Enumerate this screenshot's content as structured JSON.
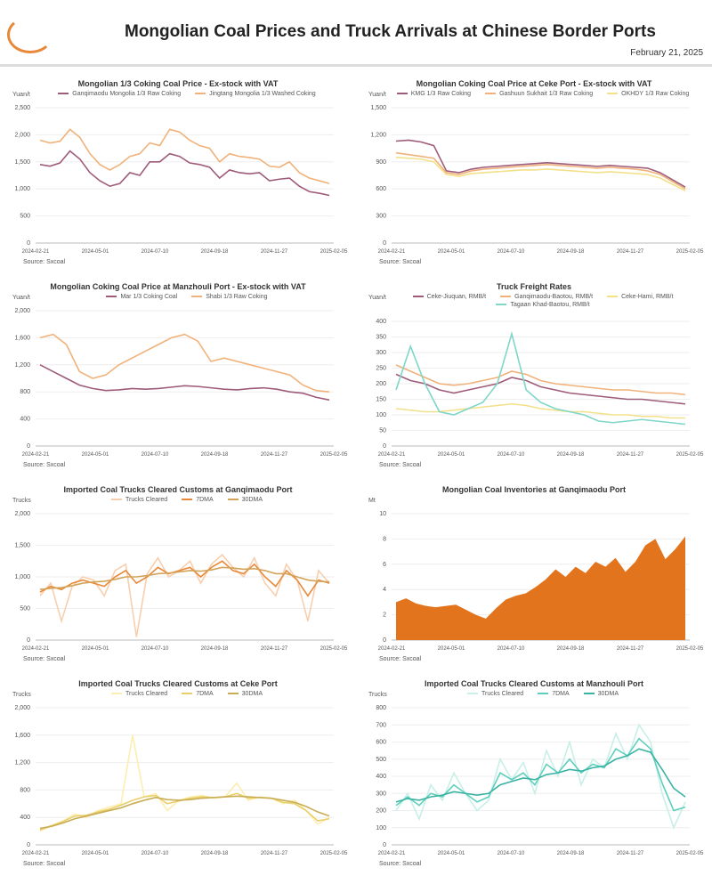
{
  "header": {
    "logo_text": "",
    "title": "Mongolian Coal Prices and Truck Arrivals at Chinese Border Ports",
    "date": "February 21, 2025"
  },
  "source": "Source: Sxcoal",
  "xticks": [
    "2024-02-21",
    "2024-05-01",
    "2024-07-10",
    "2024-09-18",
    "2024-11-27",
    "2025-02-05"
  ],
  "chart_data": [
    {
      "type": "line",
      "title": "Mongolian 1/3 Coking Coal Price - Ex-stock with VAT",
      "unit": "Yuan/t",
      "ylim": [
        0,
        2500
      ],
      "yticks": [
        0,
        500,
        1000,
        1500,
        2000,
        2500
      ],
      "series": [
        {
          "name": "Ganqimaodu Mongolia 1/3 Raw Coking",
          "color": "#9e5b7a",
          "values": [
            1450,
            1420,
            1480,
            1700,
            1550,
            1300,
            1150,
            1050,
            1100,
            1300,
            1250,
            1500,
            1500,
            1650,
            1600,
            1480,
            1450,
            1400,
            1200,
            1350,
            1300,
            1280,
            1300,
            1150,
            1180,
            1200,
            1050,
            950,
            920,
            880
          ]
        },
        {
          "name": "Jingtang Mongolia 1/3 Washed Coking",
          "color": "#f0b27a",
          "values": [
            1900,
            1850,
            1880,
            2100,
            1950,
            1650,
            1450,
            1350,
            1450,
            1600,
            1650,
            1850,
            1800,
            2100,
            2050,
            1900,
            1800,
            1750,
            1500,
            1650,
            1600,
            1580,
            1550,
            1420,
            1400,
            1500,
            1300,
            1200,
            1150,
            1100
          ]
        }
      ]
    },
    {
      "type": "line",
      "title": "Mongolian Coking Coal Price at Ceke Port - Ex-stock with VAT",
      "unit": "Yuan/t",
      "ylim": [
        0,
        1500
      ],
      "yticks": [
        0,
        300,
        600,
        900,
        1200,
        1500
      ],
      "series": [
        {
          "name": "KMG 1/3 Raw Coking",
          "color": "#9e5b7a",
          "values": [
            1130,
            1140,
            1120,
            1080,
            800,
            780,
            820,
            840,
            850,
            860,
            870,
            880,
            890,
            880,
            870,
            860,
            850,
            860,
            850,
            840,
            830,
            780,
            700,
            620
          ]
        },
        {
          "name": "Gashuun Sukhait 1/3 Raw Coking",
          "color": "#f0b27a",
          "values": [
            1000,
            980,
            960,
            940,
            780,
            760,
            800,
            820,
            830,
            840,
            850,
            860,
            870,
            860,
            850,
            840,
            830,
            840,
            830,
            820,
            800,
            760,
            680,
            600
          ]
        },
        {
          "name": "OKHDY 1/3 Raw Coking",
          "color": "#f3e08a",
          "values": [
            950,
            940,
            930,
            900,
            760,
            740,
            770,
            780,
            790,
            800,
            810,
            810,
            820,
            810,
            800,
            790,
            780,
            790,
            780,
            770,
            760,
            720,
            650,
            580
          ]
        }
      ]
    },
    {
      "type": "line",
      "title": "Mongolian Coking Coal Price at Manzhouli Port - Ex-stock with VAT",
      "unit": "Yuan/t",
      "ylim": [
        0,
        2000
      ],
      "yticks": [
        0,
        400,
        800,
        1200,
        1600,
        2000
      ],
      "series": [
        {
          "name": "Mar 1/3 Coking Coal",
          "color": "#9e5b7a",
          "values": [
            1200,
            1100,
            1000,
            900,
            850,
            820,
            830,
            850,
            840,
            850,
            870,
            890,
            880,
            860,
            840,
            830,
            850,
            860,
            840,
            800,
            780,
            720,
            680
          ]
        },
        {
          "name": "Shabi 1/3 Raw Coking",
          "color": "#f0b27a",
          "values": [
            1600,
            1650,
            1500,
            1100,
            1000,
            1050,
            1200,
            1300,
            1400,
            1500,
            1600,
            1650,
            1550,
            1250,
            1300,
            1250,
            1200,
            1150,
            1100,
            1050,
            900,
            820,
            800
          ]
        }
      ]
    },
    {
      "type": "line",
      "title": "Truck Freight Rates",
      "unit": "Yuan/t",
      "ylim": [
        0,
        400
      ],
      "yticks": [
        0,
        50,
        100,
        150,
        200,
        250,
        300,
        350,
        400
      ],
      "series": [
        {
          "name": "Ceke-Jiuquan, RMB/t",
          "color": "#9e5b7a",
          "values": [
            230,
            210,
            200,
            180,
            170,
            180,
            190,
            200,
            220,
            210,
            190,
            180,
            170,
            165,
            160,
            155,
            150,
            150,
            145,
            140,
            135
          ]
        },
        {
          "name": "Ganqimaodu-Baotou, RMB/t",
          "color": "#f0b27a",
          "values": [
            260,
            240,
            220,
            200,
            195,
            200,
            210,
            220,
            240,
            230,
            210,
            200,
            195,
            190,
            185,
            180,
            180,
            175,
            170,
            170,
            165
          ]
        },
        {
          "name": "Ceke-Hami, RMB/t",
          "color": "#f3e08a",
          "values": [
            120,
            115,
            110,
            110,
            115,
            120,
            125,
            130,
            135,
            130,
            120,
            115,
            110,
            110,
            105,
            100,
            100,
            95,
            95,
            90,
            90
          ]
        },
        {
          "name": "Tagaan Khad-Baotou, RMB/t",
          "color": "#7fd6c9",
          "values": [
            180,
            320,
            200,
            110,
            100,
            120,
            140,
            200,
            360,
            180,
            140,
            120,
            110,
            100,
            80,
            75,
            80,
            85,
            80,
            75,
            70
          ]
        }
      ]
    },
    {
      "type": "line",
      "title": "Imported Coal Trucks Cleared Customs at Ganqimaodu Port",
      "unit": "Trucks",
      "ylim": [
        0,
        2000
      ],
      "yticks": [
        0,
        500,
        1000,
        1500,
        2000
      ],
      "series": [
        {
          "name": "Trucks Cleared",
          "color": "#f8cfae",
          "values": [
            700,
            900,
            300,
            850,
            1000,
            950,
            700,
            1100,
            1200,
            50,
            1050,
            1300,
            1000,
            1100,
            1250,
            900,
            1200,
            1350,
            1150,
            1000,
            1300,
            900,
            700,
            1200,
            950,
            300,
            1100,
            900
          ]
        },
        {
          "name": "7DMA",
          "color": "#e8893a",
          "values": [
            760,
            850,
            800,
            900,
            950,
            900,
            850,
            1000,
            1100,
            900,
            1000,
            1150,
            1050,
            1100,
            1150,
            1000,
            1150,
            1250,
            1100,
            1050,
            1200,
            1000,
            850,
            1100,
            950,
            700,
            950,
            900
          ]
        },
        {
          "name": "30DMA",
          "color": "#d4a35a",
          "values": [
            800,
            820,
            830,
            860,
            900,
            920,
            930,
            960,
            1000,
            1000,
            1020,
            1050,
            1060,
            1080,
            1100,
            1090,
            1110,
            1150,
            1140,
            1120,
            1130,
            1100,
            1050,
            1050,
            1000,
            950,
            930,
            920
          ]
        }
      ]
    },
    {
      "type": "area",
      "title": "Mongolian Coal Inventories at Ganqimaodu Port",
      "unit": "Mt",
      "ylim": [
        0,
        10
      ],
      "yticks": [
        0,
        2,
        4,
        6,
        8,
        10
      ],
      "series": [
        {
          "name": "",
          "color": "#e2741e",
          "values": [
            3.0,
            3.3,
            2.9,
            2.7,
            2.6,
            2.7,
            2.8,
            2.4,
            2.0,
            1.7,
            2.5,
            3.2,
            3.5,
            3.7,
            4.2,
            4.8,
            5.6,
            5.0,
            5.8,
            5.3,
            6.2,
            5.8,
            6.5,
            5.4,
            6.2,
            7.5,
            8.0,
            6.4,
            7.2,
            8.2
          ]
        }
      ]
    },
    {
      "type": "line",
      "title": "Imported Coal Trucks Cleared Customs at Ceke Port",
      "unit": "Trucks",
      "ylim": [
        0,
        2000
      ],
      "yticks": [
        0,
        400,
        800,
        1200,
        1600,
        2000
      ],
      "series": [
        {
          "name": "Trucks Cleared",
          "color": "#fbeeb0",
          "values": [
            200,
            280,
            350,
            450,
            400,
            500,
            550,
            600,
            1600,
            700,
            750,
            500,
            650,
            700,
            720,
            680,
            700,
            900,
            650,
            700,
            680,
            600,
            650,
            500,
            300,
            400
          ]
        },
        {
          "name": "7DMA",
          "color": "#e9cf6a",
          "values": [
            220,
            280,
            340,
            420,
            430,
            480,
            520,
            580,
            650,
            700,
            720,
            600,
            640,
            680,
            700,
            690,
            700,
            750,
            680,
            690,
            680,
            620,
            600,
            500,
            350,
            380
          ]
        },
        {
          "name": "30DMA",
          "color": "#c9ad55",
          "values": [
            240,
            270,
            320,
            380,
            420,
            460,
            500,
            540,
            600,
            650,
            690,
            660,
            650,
            660,
            680,
            690,
            700,
            710,
            700,
            690,
            680,
            650,
            620,
            560,
            480,
            420
          ]
        }
      ]
    },
    {
      "type": "line",
      "title": "Imported Coal Trucks Cleared Customs at Manzhouli Port",
      "unit": "Trucks",
      "ylim": [
        0,
        800
      ],
      "yticks": [
        0,
        100,
        200,
        300,
        400,
        500,
        600,
        700,
        800
      ],
      "series": [
        {
          "name": "Trucks Cleared",
          "color": "#c8efe8",
          "values": [
            200,
            300,
            150,
            350,
            260,
            420,
            300,
            200,
            260,
            500,
            380,
            480,
            300,
            550,
            400,
            600,
            350,
            500,
            450,
            650,
            500,
            700,
            600,
            300,
            100,
            250
          ]
        },
        {
          "name": "7DMA",
          "color": "#5fcfbd",
          "values": [
            230,
            280,
            230,
            300,
            280,
            350,
            300,
            250,
            280,
            420,
            380,
            420,
            350,
            470,
            420,
            500,
            420,
            470,
            450,
            560,
            520,
            620,
            560,
            360,
            200,
            220
          ]
        },
        {
          "name": "30DMA",
          "color": "#3bb3a3",
          "values": [
            250,
            270,
            260,
            280,
            290,
            310,
            300,
            290,
            300,
            350,
            370,
            390,
            380,
            410,
            420,
            440,
            430,
            450,
            460,
            500,
            520,
            560,
            540,
            440,
            330,
            280
          ]
        }
      ]
    }
  ]
}
